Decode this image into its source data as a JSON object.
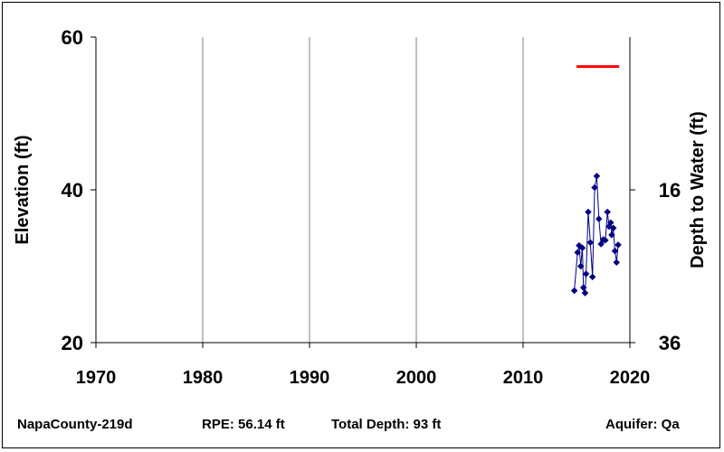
{
  "chart_data": {
    "type": "scatter",
    "xlabel": "",
    "ylabel": "Elevation (ft)",
    "y2label": "Depth to Water (ft)",
    "xlim": [
      1970,
      2020
    ],
    "ylim": [
      20,
      60
    ],
    "y2lim": [
      36,
      -4
    ],
    "x_ticks": [
      1970,
      1980,
      1990,
      2000,
      2010,
      2020
    ],
    "y_ticks": [
      20,
      40,
      60
    ],
    "y2_ticks": [
      36,
      16
    ],
    "grid": "vertical",
    "series": [
      {
        "type": "line-marker",
        "color": "#000080",
        "marker": "diamond",
        "x": [
          2014.8,
          2015.1,
          2015.25,
          2015.4,
          2015.55,
          2015.65,
          2015.8,
          2015.9,
          2016.1,
          2016.3,
          2016.5,
          2016.7,
          2016.9,
          2017.1,
          2017.3,
          2017.5,
          2017.7,
          2017.9,
          2018.05,
          2018.2,
          2018.3,
          2018.45,
          2018.6,
          2018.75,
          2018.9
        ],
        "y": [
          26.8,
          31.8,
          32.7,
          30.0,
          32.4,
          27.2,
          26.5,
          29.0,
          37.1,
          33.1,
          28.6,
          40.3,
          41.8,
          36.2,
          32.9,
          33.5,
          33.4,
          37.1,
          35.2,
          35.7,
          34.1,
          35.0,
          32.0,
          30.5,
          32.8
        ]
      },
      {
        "type": "reference-line",
        "color": "#ff0000",
        "x": [
          2015,
          2019
        ],
        "y": [
          56.14,
          56.14
        ]
      }
    ]
  },
  "footer": {
    "well_name": "NapaCounty-219d",
    "rpe": "RPE: 56.14 ft",
    "total_depth": "Total Depth: 93 ft",
    "aquifer": "Aquifer: Qa"
  }
}
